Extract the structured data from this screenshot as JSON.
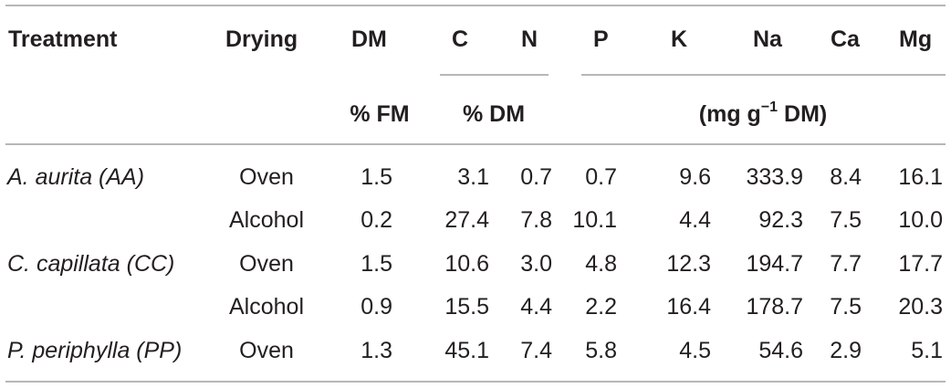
{
  "table": {
    "headers": [
      "Treatment",
      "Drying",
      "DM",
      "C",
      "N",
      "P",
      "K",
      "Na",
      "Ca",
      "Mg"
    ],
    "units": {
      "dm": "% FM",
      "cn": "% DM",
      "minerals_pre": "(mg g",
      "minerals_sup": "−1",
      "minerals_post": " DM)"
    },
    "rows": [
      {
        "treatment": "A. aurita (AA)",
        "drying": "Oven",
        "dm": "1.5",
        "c": "3.1",
        "n": "0.7",
        "p": "0.7",
        "k": "9.6",
        "na": "333.9",
        "ca": "8.4",
        "mg": "16.1"
      },
      {
        "treatment": "",
        "drying": "Alcohol",
        "dm": "0.2",
        "c": "27.4",
        "n": "7.8",
        "p": "10.1",
        "k": "4.4",
        "na": "92.3",
        "ca": "7.5",
        "mg": "10.0"
      },
      {
        "treatment": "C. capillata (CC)",
        "drying": "Oven",
        "dm": "1.5",
        "c": "10.6",
        "n": "3.0",
        "p": "4.8",
        "k": "12.3",
        "na": "194.7",
        "ca": "7.7",
        "mg": "17.7"
      },
      {
        "treatment": "",
        "drying": "Alcohol",
        "dm": "0.9",
        "c": "15.5",
        "n": "4.4",
        "p": "2.2",
        "k": "16.4",
        "na": "178.7",
        "ca": "7.5",
        "mg": "20.3"
      },
      {
        "treatment": "P. periphylla (PP)",
        "drying": "Oven",
        "dm": "1.3",
        "c": "45.1",
        "n": "7.4",
        "p": "5.8",
        "k": "4.5",
        "na": "54.6",
        "ca": "2.9",
        "mg": "5.1"
      }
    ]
  }
}
